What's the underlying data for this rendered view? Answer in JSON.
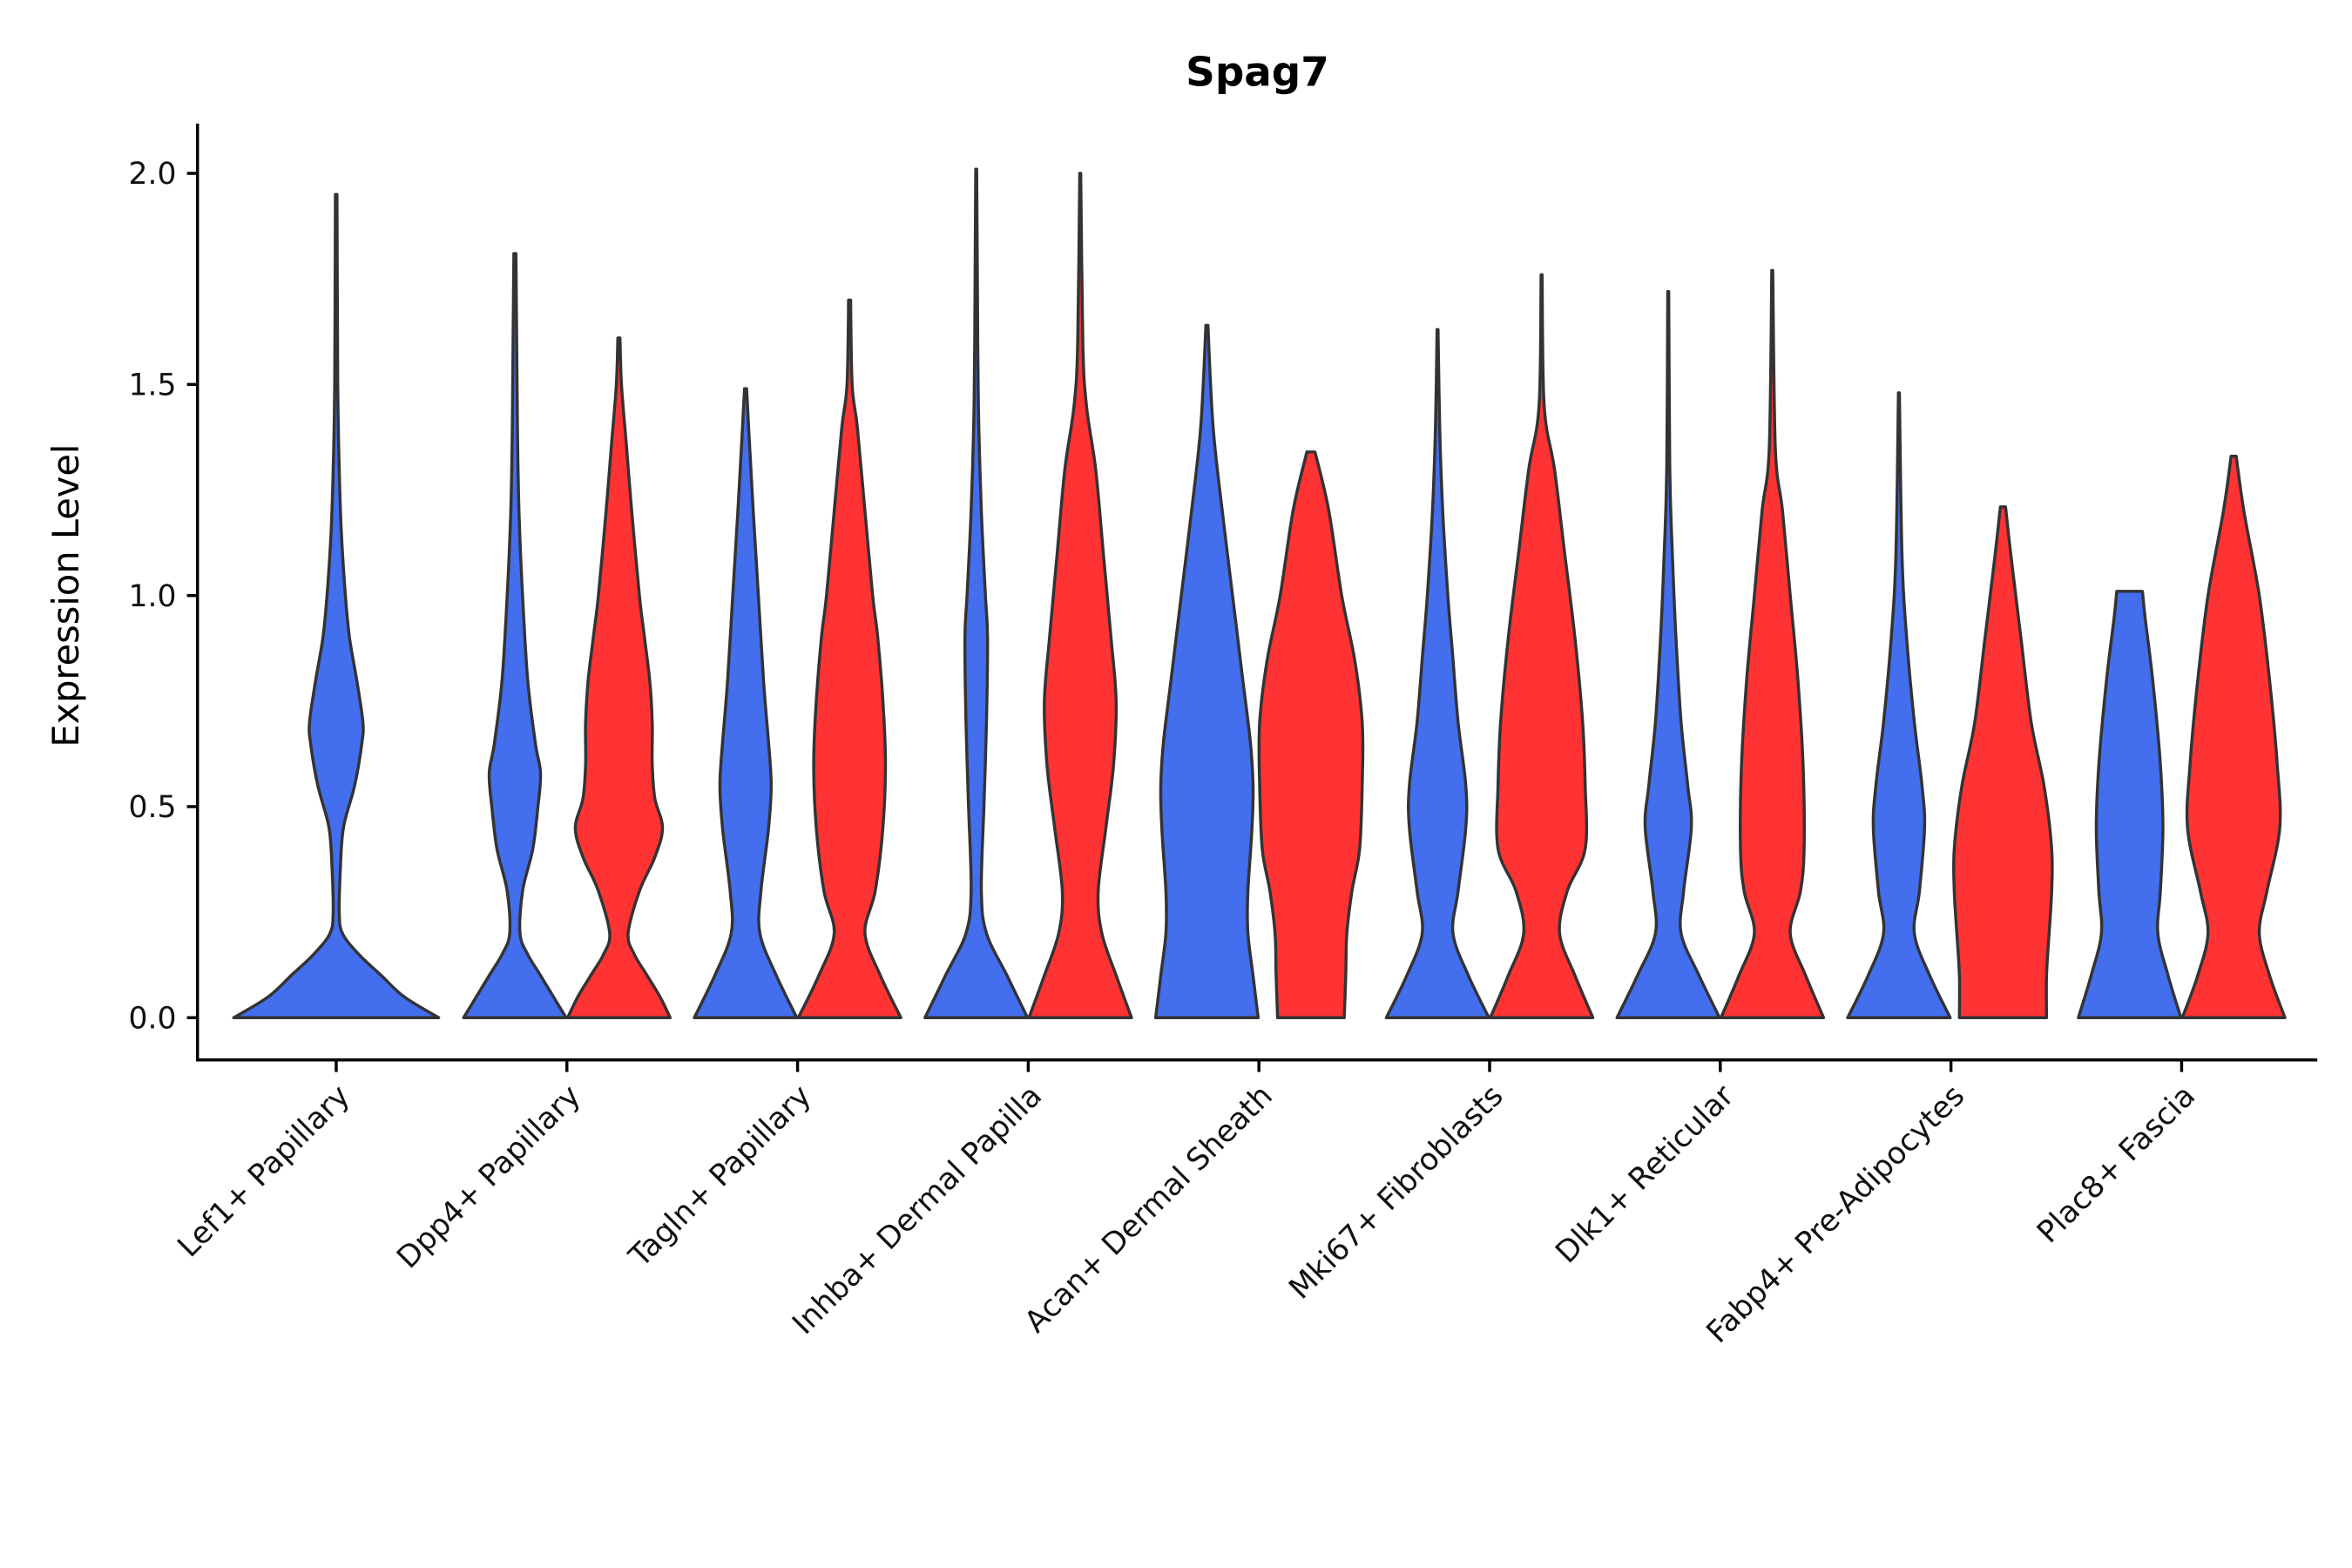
{
  "chart_data": {
    "type": "violin",
    "title": "Spag7",
    "xlabel": "",
    "ylabel": "Expression Level",
    "ylim": [
      -0.1,
      2.12
    ],
    "yticks": [
      0.0,
      0.5,
      1.0,
      1.5,
      2.0
    ],
    "ytick_labels": [
      "0.0",
      "0.5",
      "1.0",
      "1.5",
      "2.0"
    ],
    "grid": false,
    "legend": "none",
    "categories": [
      "Lef1+ Papillary",
      "Dpp4+ Papillary",
      "Tagln+ Papillary",
      "Inhba+ Dermal Papilla",
      "Acan+ Dermal Sheath",
      "Mki67+ Fibroblasts",
      "Dlk1+ Reticular",
      "Fabp4+ Pre-Adipocytes",
      "Plac8+ Fascia"
    ],
    "group_colors": {
      "blue": "#436EEE",
      "red": "#FF3333"
    },
    "outline_color": "#333333",
    "violins": [
      {
        "category": 0,
        "group": "blue",
        "solo": true,
        "max": 1.95,
        "density": [
          [
            0,
            1
          ],
          [
            0.05,
            0.66
          ],
          [
            0.1,
            0.44
          ],
          [
            0.15,
            0.22
          ],
          [
            0.2,
            0.06
          ],
          [
            0.25,
            0.03
          ],
          [
            0.35,
            0.04
          ],
          [
            0.45,
            0.07
          ],
          [
            0.55,
            0.18
          ],
          [
            0.65,
            0.25
          ],
          [
            0.7,
            0.26
          ],
          [
            0.8,
            0.2
          ],
          [
            0.9,
            0.13
          ],
          [
            1.0,
            0.09
          ],
          [
            1.15,
            0.05
          ],
          [
            1.3,
            0.03
          ],
          [
            1.5,
            0.015
          ],
          [
            1.95,
            0.008
          ]
        ]
      },
      {
        "category": 1,
        "group": "blue",
        "max": 1.81,
        "density": [
          [
            0,
            1
          ],
          [
            0.05,
            0.75
          ],
          [
            0.1,
            0.5
          ],
          [
            0.15,
            0.25
          ],
          [
            0.2,
            0.1
          ],
          [
            0.3,
            0.15
          ],
          [
            0.4,
            0.35
          ],
          [
            0.5,
            0.45
          ],
          [
            0.58,
            0.5
          ],
          [
            0.65,
            0.4
          ],
          [
            0.8,
            0.25
          ],
          [
            1.0,
            0.15
          ],
          [
            1.2,
            0.08
          ],
          [
            1.4,
            0.05
          ],
          [
            1.81,
            0.02
          ]
        ]
      },
      {
        "category": 1,
        "group": "red",
        "max": 1.61,
        "density": [
          [
            0,
            1
          ],
          [
            0.05,
            0.8
          ],
          [
            0.1,
            0.55
          ],
          [
            0.15,
            0.3
          ],
          [
            0.2,
            0.18
          ],
          [
            0.3,
            0.4
          ],
          [
            0.38,
            0.7
          ],
          [
            0.45,
            0.85
          ],
          [
            0.52,
            0.7
          ],
          [
            0.6,
            0.65
          ],
          [
            0.7,
            0.65
          ],
          [
            0.8,
            0.6
          ],
          [
            0.9,
            0.5
          ],
          [
            1.0,
            0.4
          ],
          [
            1.2,
            0.25
          ],
          [
            1.35,
            0.15
          ],
          [
            1.5,
            0.05
          ],
          [
            1.61,
            0.02
          ]
        ]
      },
      {
        "category": 2,
        "group": "blue",
        "max": 1.49,
        "density": [
          [
            0,
            1
          ],
          [
            0.1,
            0.6
          ],
          [
            0.2,
            0.28
          ],
          [
            0.3,
            0.3
          ],
          [
            0.45,
            0.45
          ],
          [
            0.55,
            0.5
          ],
          [
            0.65,
            0.45
          ],
          [
            0.8,
            0.35
          ],
          [
            1.0,
            0.25
          ],
          [
            1.2,
            0.15
          ],
          [
            1.4,
            0.06
          ],
          [
            1.49,
            0.02
          ]
        ]
      },
      {
        "category": 2,
        "group": "red",
        "max": 1.7,
        "density": [
          [
            0,
            1
          ],
          [
            0.1,
            0.6
          ],
          [
            0.2,
            0.3
          ],
          [
            0.3,
            0.5
          ],
          [
            0.45,
            0.65
          ],
          [
            0.6,
            0.7
          ],
          [
            0.75,
            0.65
          ],
          [
            0.9,
            0.55
          ],
          [
            1.0,
            0.45
          ],
          [
            1.2,
            0.3
          ],
          [
            1.4,
            0.15
          ],
          [
            1.5,
            0.05
          ],
          [
            1.7,
            0.02
          ]
        ]
      },
      {
        "category": 3,
        "group": "blue",
        "max": 2.01,
        "density": [
          [
            0,
            1
          ],
          [
            0.1,
            0.6
          ],
          [
            0.2,
            0.2
          ],
          [
            0.3,
            0.1
          ],
          [
            0.5,
            0.15
          ],
          [
            0.7,
            0.2
          ],
          [
            0.9,
            0.22
          ],
          [
            1.0,
            0.18
          ],
          [
            1.2,
            0.1
          ],
          [
            1.4,
            0.05
          ],
          [
            1.6,
            0.03
          ],
          [
            2.01,
            0.01
          ]
        ]
      },
      {
        "category": 3,
        "group": "red",
        "max": 2.0,
        "density": [
          [
            0,
            1
          ],
          [
            0.1,
            0.7
          ],
          [
            0.2,
            0.42
          ],
          [
            0.3,
            0.35
          ],
          [
            0.45,
            0.5
          ],
          [
            0.6,
            0.65
          ],
          [
            0.75,
            0.7
          ],
          [
            0.9,
            0.6
          ],
          [
            1.1,
            0.45
          ],
          [
            1.3,
            0.3
          ],
          [
            1.45,
            0.12
          ],
          [
            1.6,
            0.05
          ],
          [
            2.0,
            0.01
          ]
        ]
      },
      {
        "category": 4,
        "group": "blue",
        "max": 1.64,
        "density": [
          [
            0,
            1
          ],
          [
            0.1,
            0.9
          ],
          [
            0.2,
            0.8
          ],
          [
            0.3,
            0.8
          ],
          [
            0.45,
            0.88
          ],
          [
            0.55,
            0.9
          ],
          [
            0.65,
            0.85
          ],
          [
            0.8,
            0.7
          ],
          [
            1.0,
            0.5
          ],
          [
            1.2,
            0.3
          ],
          [
            1.4,
            0.12
          ],
          [
            1.64,
            0.02
          ]
        ]
      },
      {
        "category": 4,
        "group": "red",
        "max": 1.34,
        "density": [
          [
            0,
            0.65
          ],
          [
            0.1,
            0.68
          ],
          [
            0.2,
            0.7
          ],
          [
            0.3,
            0.8
          ],
          [
            0.4,
            0.95
          ],
          [
            0.55,
            1.0
          ],
          [
            0.7,
            1.0
          ],
          [
            0.85,
            0.85
          ],
          [
            1.0,
            0.6
          ],
          [
            1.2,
            0.35
          ],
          [
            1.34,
            0.08
          ]
        ]
      },
      {
        "category": 5,
        "group": "blue",
        "max": 1.63,
        "density": [
          [
            0,
            1
          ],
          [
            0.1,
            0.6
          ],
          [
            0.2,
            0.3
          ],
          [
            0.3,
            0.4
          ],
          [
            0.45,
            0.55
          ],
          [
            0.55,
            0.55
          ],
          [
            0.7,
            0.4
          ],
          [
            0.85,
            0.3
          ],
          [
            1.0,
            0.2
          ],
          [
            1.2,
            0.1
          ],
          [
            1.4,
            0.04
          ],
          [
            1.63,
            0.01
          ]
        ]
      },
      {
        "category": 5,
        "group": "red",
        "max": 1.76,
        "density": [
          [
            0,
            1
          ],
          [
            0.1,
            0.65
          ],
          [
            0.2,
            0.35
          ],
          [
            0.3,
            0.5
          ],
          [
            0.4,
            0.85
          ],
          [
            0.55,
            0.85
          ],
          [
            0.7,
            0.8
          ],
          [
            0.9,
            0.65
          ],
          [
            1.1,
            0.45
          ],
          [
            1.3,
            0.25
          ],
          [
            1.45,
            0.05
          ],
          [
            1.76,
            0.01
          ]
        ]
      },
      {
        "category": 6,
        "group": "blue",
        "max": 1.72,
        "density": [
          [
            0,
            1
          ],
          [
            0.1,
            0.6
          ],
          [
            0.2,
            0.25
          ],
          [
            0.3,
            0.3
          ],
          [
            0.45,
            0.45
          ],
          [
            0.55,
            0.38
          ],
          [
            0.7,
            0.25
          ],
          [
            0.9,
            0.15
          ],
          [
            1.1,
            0.08
          ],
          [
            1.3,
            0.03
          ],
          [
            1.72,
            0.01
          ]
        ]
      },
      {
        "category": 6,
        "group": "red",
        "max": 1.77,
        "density": [
          [
            0,
            1
          ],
          [
            0.1,
            0.65
          ],
          [
            0.2,
            0.35
          ],
          [
            0.3,
            0.55
          ],
          [
            0.4,
            0.62
          ],
          [
            0.6,
            0.6
          ],
          [
            0.8,
            0.5
          ],
          [
            1.0,
            0.35
          ],
          [
            1.2,
            0.2
          ],
          [
            1.35,
            0.06
          ],
          [
            1.77,
            0.01
          ]
        ]
      },
      {
        "category": 7,
        "group": "blue",
        "max": 1.48,
        "density": [
          [
            0,
            1
          ],
          [
            0.1,
            0.6
          ],
          [
            0.2,
            0.3
          ],
          [
            0.3,
            0.4
          ],
          [
            0.45,
            0.5
          ],
          [
            0.55,
            0.45
          ],
          [
            0.7,
            0.3
          ],
          [
            0.9,
            0.15
          ],
          [
            1.1,
            0.06
          ],
          [
            1.48,
            0.01
          ]
        ]
      },
      {
        "category": 7,
        "group": "red",
        "max": 1.21,
        "density": [
          [
            0,
            0.85
          ],
          [
            0.1,
            0.85
          ],
          [
            0.2,
            0.9
          ],
          [
            0.3,
            0.95
          ],
          [
            0.4,
            0.95
          ],
          [
            0.55,
            0.8
          ],
          [
            0.7,
            0.55
          ],
          [
            0.9,
            0.35
          ],
          [
            1.1,
            0.15
          ],
          [
            1.21,
            0.05
          ]
        ]
      },
      {
        "category": 8,
        "group": "blue",
        "max": 1.01,
        "density": [
          [
            0,
            1
          ],
          [
            0.1,
            0.75
          ],
          [
            0.2,
            0.55
          ],
          [
            0.3,
            0.6
          ],
          [
            0.45,
            0.65
          ],
          [
            0.6,
            0.6
          ],
          [
            0.8,
            0.45
          ],
          [
            0.95,
            0.3
          ],
          [
            1.01,
            0.25
          ]
        ]
      },
      {
        "category": 8,
        "group": "red",
        "max": 1.33,
        "density": [
          [
            0,
            1
          ],
          [
            0.1,
            0.7
          ],
          [
            0.2,
            0.5
          ],
          [
            0.3,
            0.65
          ],
          [
            0.45,
            0.9
          ],
          [
            0.6,
            0.85
          ],
          [
            0.8,
            0.7
          ],
          [
            1.0,
            0.5
          ],
          [
            1.2,
            0.2
          ],
          [
            1.33,
            0.05
          ]
        ]
      }
    ]
  }
}
